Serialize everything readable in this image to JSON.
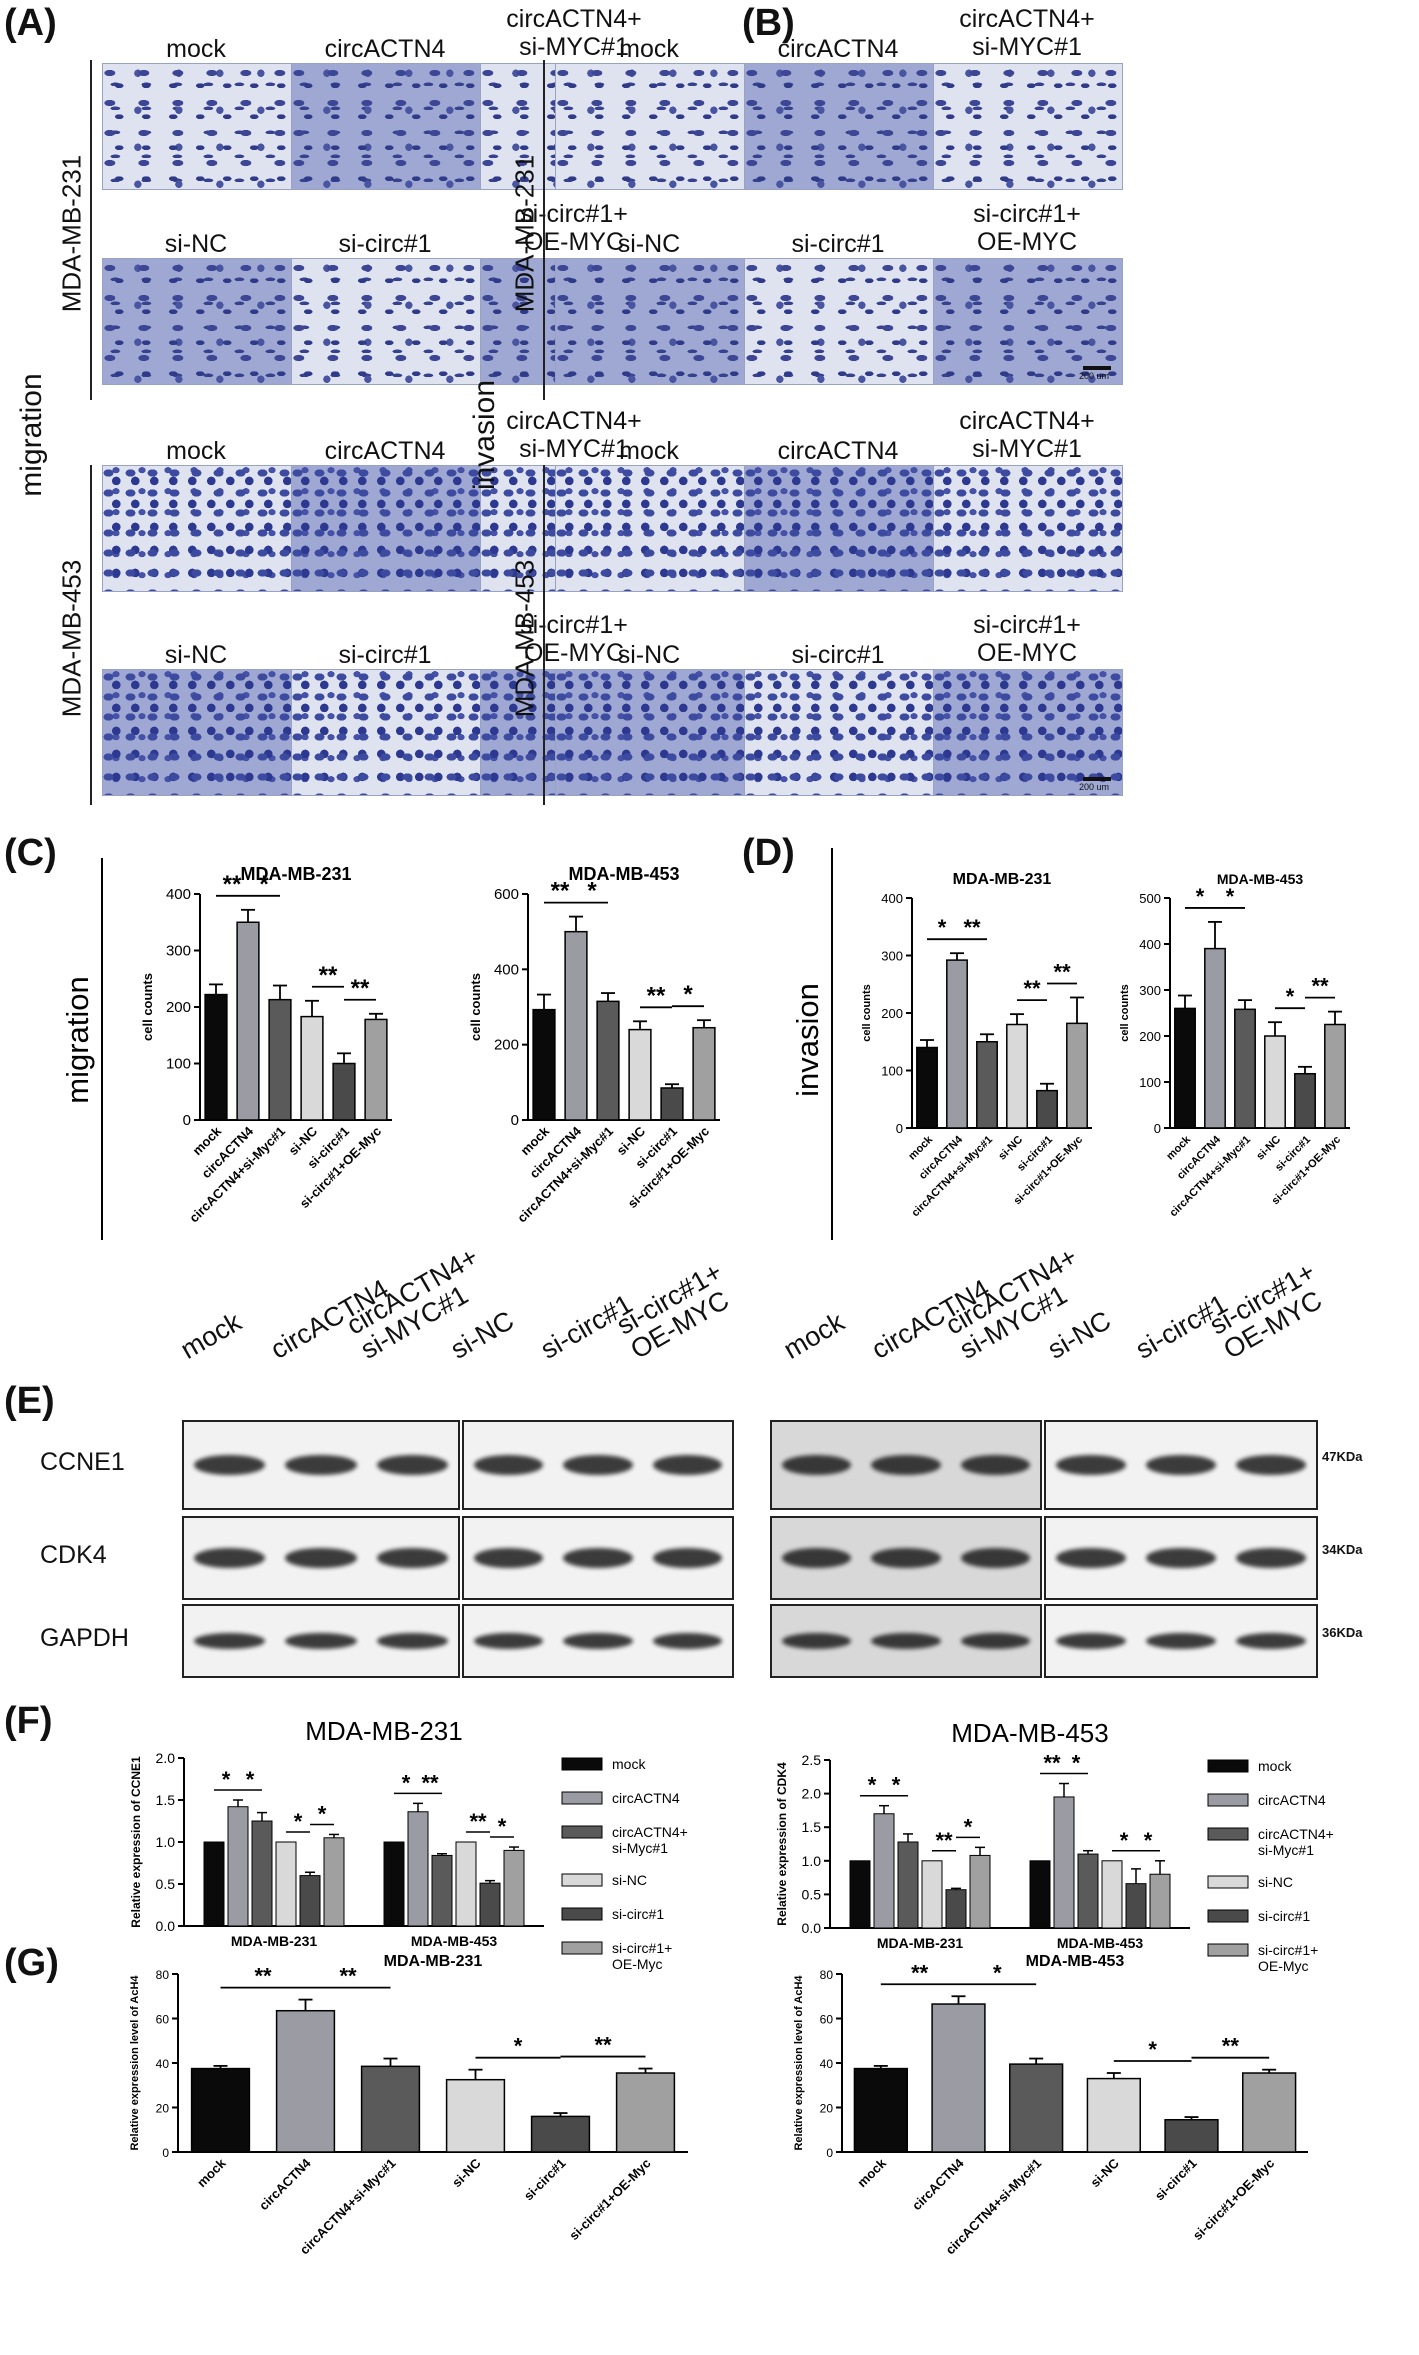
{
  "panels": {
    "A": "(A)",
    "B": "(B)",
    "C": "(C)",
    "D": "(D)",
    "E": "(E)",
    "F": "(F)",
    "G": "(G)"
  },
  "image_labels": {
    "row1": [
      "mock",
      "circACTN4",
      "circACTN4+\nsi-MYC#1"
    ],
    "row2": [
      "si-NC",
      "si-circ#1",
      "si-circ#1+\nOE-MYC"
    ],
    "cell_lines": [
      "MDA-MB-231",
      "MDA-MB-453"
    ],
    "migration": "migration",
    "invasion": "invasion",
    "scale": "200 um"
  },
  "bar_categories": [
    "mock",
    "circACTN4",
    "circACTN4+si-Myc#1",
    "si-NC",
    "si-circ#1",
    "si-circ#1+OE-Myc"
  ],
  "bar_colors": [
    "#0a0a0a",
    "#9b9ba4",
    "#5a5a5a",
    "#d9d9d9",
    "#4a4a4a",
    "#a0a0a0"
  ],
  "wb": {
    "lanes_left": [
      "mock",
      "circACTN4",
      "circACTN4+\nsi-MYC#1",
      "si-NC",
      "si-circ#1",
      "si-circ#1+\nOE-MYC"
    ],
    "lanes_right": [
      "mock",
      "circACTN4",
      "circACTN4+\nsi-MYC#1",
      "si-NC",
      "si-circ#1",
      "si-circ#1+\nOE-MYC"
    ],
    "proteins": [
      "CCNE1",
      "CDK4",
      "GAPDH"
    ],
    "kda": [
      "47KDa",
      "34KDa",
      "36KDa"
    ]
  },
  "chart_data": [
    {
      "id": "C-231",
      "type": "bar",
      "title": "MDA-MB-231",
      "ylabel": "cell counts",
      "panel_ylabel": "migration",
      "categories": [
        "mock",
        "circACTN4",
        "circACTN4+si-Myc#1",
        "si-NC",
        "si-circ#1",
        "si-circ#1+OE-Myc"
      ],
      "values": [
        222,
        350,
        213,
        183,
        100,
        178
      ],
      "errors": [
        18,
        22,
        25,
        28,
        18,
        10
      ],
      "ylim": [
        0,
        400
      ],
      "yticks": [
        0,
        100,
        200,
        300,
        400
      ],
      "sig": [
        {
          "from": 0,
          "to": 1,
          "label": "**"
        },
        {
          "from": 1,
          "to": 2,
          "label": "*"
        },
        {
          "from": 3,
          "to": 4,
          "label": "**"
        },
        {
          "from": 4,
          "to": 5,
          "label": "**"
        }
      ]
    },
    {
      "id": "C-453",
      "type": "bar",
      "title": "MDA-MB-453",
      "ylabel": "cell counts",
      "categories": [
        "mock",
        "circACTN4",
        "circACTN4+si-Myc#1",
        "si-NC",
        "si-circ#1",
        "si-circ#1+OE-Myc"
      ],
      "values": [
        293,
        500,
        315,
        240,
        85,
        245
      ],
      "errors": [
        40,
        40,
        22,
        22,
        10,
        20
      ],
      "ylim": [
        0,
        600
      ],
      "yticks": [
        0,
        200,
        400,
        600
      ],
      "sig": [
        {
          "from": 0,
          "to": 1,
          "label": "**"
        },
        {
          "from": 1,
          "to": 2,
          "label": "*"
        },
        {
          "from": 3,
          "to": 4,
          "label": "**"
        },
        {
          "from": 4,
          "to": 5,
          "label": "*"
        }
      ]
    },
    {
      "id": "D-231",
      "type": "bar",
      "title": "MDA-MB-231",
      "ylabel": "cell counts",
      "panel_ylabel": "invasion",
      "categories": [
        "mock",
        "circACTN4",
        "circACTN4+si-Myc#1",
        "si-NC",
        "si-circ#1",
        "si-circ#1+OE-Myc"
      ],
      "values": [
        140,
        292,
        150,
        180,
        65,
        182
      ],
      "errors": [
        13,
        12,
        13,
        18,
        12,
        45
      ],
      "ylim": [
        0,
        400
      ],
      "yticks": [
        0,
        100,
        200,
        300,
        400
      ],
      "sig": [
        {
          "from": 0,
          "to": 1,
          "label": "*"
        },
        {
          "from": 1,
          "to": 2,
          "label": "**"
        },
        {
          "from": 3,
          "to": 4,
          "label": "**"
        },
        {
          "from": 4,
          "to": 5,
          "label": "**"
        }
      ]
    },
    {
      "id": "D-453",
      "type": "bar",
      "title": "MDA-MB-453",
      "ylabel": "cell counts",
      "categories": [
        "mock",
        "circACTN4",
        "circACTN4+si-Myc#1",
        "si-NC",
        "si-circ#1",
        "si-circ#1+OE-Myc"
      ],
      "values": [
        260,
        390,
        258,
        200,
        118,
        225
      ],
      "errors": [
        28,
        58,
        20,
        30,
        15,
        28
      ],
      "ylim": [
        0,
        500
      ],
      "yticks": [
        0,
        100,
        200,
        300,
        400,
        500
      ],
      "sig": [
        {
          "from": 0,
          "to": 1,
          "label": "*"
        },
        {
          "from": 1,
          "to": 2,
          "label": "*"
        },
        {
          "from": 3,
          "to": 4,
          "label": "*"
        },
        {
          "from": 4,
          "to": 5,
          "label": "**"
        }
      ]
    },
    {
      "id": "F-CCNE1",
      "type": "bar",
      "title": "MDA-MB-231",
      "ylabel": "Relative expression of CCNE1",
      "groups": [
        "MDA-MB-231",
        "MDA-MB-453"
      ],
      "series": [
        {
          "name": "mock",
          "values": [
            1.0,
            1.0
          ],
          "errors": [
            0,
            0
          ]
        },
        {
          "name": "circACTN4",
          "values": [
            1.42,
            1.36
          ],
          "errors": [
            0.08,
            0.1
          ]
        },
        {
          "name": "circACTN4+\nsi-Myc#1",
          "values": [
            1.25,
            0.84
          ],
          "errors": [
            0.1,
            0.02
          ]
        },
        {
          "name": "si-NC",
          "values": [
            1.0,
            1.0
          ],
          "errors": [
            0,
            0
          ]
        },
        {
          "name": "si-circ#1",
          "values": [
            0.6,
            0.51
          ],
          "errors": [
            0.04,
            0.03
          ]
        },
        {
          "name": "si-circ#1+\nOE-Myc",
          "values": [
            1.05,
            0.9
          ],
          "errors": [
            0.04,
            0.04
          ]
        }
      ],
      "ylim": [
        0,
        2.0
      ],
      "yticks": [
        0.0,
        0.5,
        1.0,
        1.5,
        2.0
      ],
      "sig": [
        {
          "g": 0,
          "from": 0,
          "to": 1,
          "label": "*"
        },
        {
          "g": 0,
          "from": 1,
          "to": 2,
          "label": "*"
        },
        {
          "g": 0,
          "from": 3,
          "to": 4,
          "label": "*"
        },
        {
          "g": 0,
          "from": 4,
          "to": 5,
          "label": "*"
        },
        {
          "g": 1,
          "from": 0,
          "to": 1,
          "label": "*"
        },
        {
          "g": 1,
          "from": 1,
          "to": 2,
          "label": "**"
        },
        {
          "g": 1,
          "from": 3,
          "to": 4,
          "label": "**"
        },
        {
          "g": 1,
          "from": 4,
          "to": 5,
          "label": "*"
        }
      ]
    },
    {
      "id": "F-CDK4",
      "type": "bar",
      "title": "MDA-MB-453",
      "ylabel": "Relative expression of CDK4",
      "groups": [
        "MDA-MB-231",
        "MDA-MB-453"
      ],
      "series": [
        {
          "name": "mock",
          "values": [
            1.0,
            1.0
          ],
          "errors": [
            0,
            0
          ]
        },
        {
          "name": "circACTN4",
          "values": [
            1.7,
            1.95
          ],
          "errors": [
            0.12,
            0.2
          ]
        },
        {
          "name": "circACTN4+\nsi-Myc#1",
          "values": [
            1.28,
            1.1
          ],
          "errors": [
            0.12,
            0.05
          ]
        },
        {
          "name": "si-NC",
          "values": [
            1.0,
            1.0
          ],
          "errors": [
            0,
            0
          ]
        },
        {
          "name": "si-circ#1",
          "values": [
            0.57,
            0.66
          ],
          "errors": [
            0.02,
            0.22
          ]
        },
        {
          "name": "si-circ#1+\nOE-Myc",
          "values": [
            1.08,
            0.8
          ],
          "errors": [
            0.12,
            0.2
          ]
        }
      ],
      "ylim": [
        0,
        2.5
      ],
      "yticks": [
        0.0,
        0.5,
        1.0,
        1.5,
        2.0,
        2.5
      ],
      "sig": [
        {
          "g": 0,
          "from": 0,
          "to": 1,
          "label": "*"
        },
        {
          "g": 0,
          "from": 1,
          "to": 2,
          "label": "*"
        },
        {
          "g": 0,
          "from": 3,
          "to": 4,
          "label": "**"
        },
        {
          "g": 0,
          "from": 4,
          "to": 5,
          "label": "*"
        },
        {
          "g": 1,
          "from": 0,
          "to": 1,
          "label": "**"
        },
        {
          "g": 1,
          "from": 1,
          "to": 2,
          "label": "*"
        },
        {
          "g": 1,
          "from": 3,
          "to": 4,
          "label": "*"
        },
        {
          "g": 1,
          "from": 4,
          "to": 5,
          "label": "*"
        }
      ]
    },
    {
      "id": "G-231",
      "type": "bar",
      "title": "MDA-MB-231",
      "ylabel": "Relative expression level of AcH4",
      "categories": [
        "mock",
        "circACTN4",
        "circACTN4+si-Myc#1",
        "si-NC",
        "si-circ#1",
        "si-circ#1+OE-Myc"
      ],
      "values": [
        37.5,
        63.5,
        38.5,
        32.5,
        16,
        35.5
      ],
      "errors": [
        1.2,
        5,
        3.5,
        4.5,
        1.5,
        2
      ],
      "ylim": [
        0,
        80
      ],
      "yticks": [
        0,
        20,
        40,
        60,
        80
      ],
      "sig": [
        {
          "from": 0,
          "to": 1,
          "label": "**"
        },
        {
          "from": 1,
          "to": 2,
          "label": "**"
        },
        {
          "from": 3,
          "to": 4,
          "label": "*"
        },
        {
          "from": 4,
          "to": 5,
          "label": "**"
        }
      ]
    },
    {
      "id": "G-453",
      "type": "bar",
      "title": "MDA-MB-453",
      "ylabel": "Relative expression level of AcH4",
      "categories": [
        "mock",
        "circACTN4",
        "circACTN4+si-Myc#1",
        "si-NC",
        "si-circ#1",
        "si-circ#1+OE-Myc"
      ],
      "values": [
        37.5,
        66.5,
        39.5,
        33,
        14.5,
        35.5
      ],
      "errors": [
        1.2,
        3.5,
        2.5,
        2.5,
        1.2,
        1.5
      ],
      "ylim": [
        0,
        80
      ],
      "yticks": [
        0,
        20,
        40,
        60,
        80
      ],
      "sig": [
        {
          "from": 0,
          "to": 1,
          "label": "**"
        },
        {
          "from": 1,
          "to": 2,
          "label": "*"
        },
        {
          "from": 3,
          "to": 4,
          "label": "*"
        },
        {
          "from": 4,
          "to": 5,
          "label": "**"
        }
      ]
    }
  ]
}
